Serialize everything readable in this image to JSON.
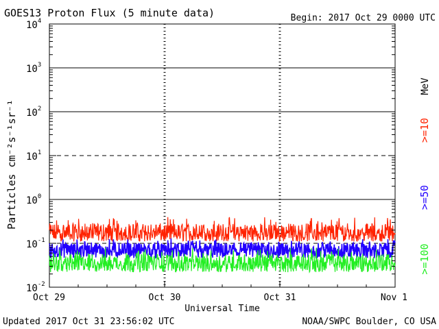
{
  "header": {
    "title": "GOES13 Proton Flux (5 minute data)",
    "begin": "Begin: 2017 Oct 29 0000 UTC"
  },
  "footer": {
    "updated": "Updated 2017 Oct 31 23:56:02 UTC",
    "credit": "NOAA/SWPC Boulder, CO USA"
  },
  "colors": {
    "ge10": "#ff2200",
    "ge50": "#2200ff",
    "ge100": "#22ee22",
    "axis": "#000000"
  },
  "chart_data": {
    "type": "line",
    "title": "GOES13 Proton Flux (5 minute data)",
    "xlabel": "Universal Time",
    "ylabel": "Particles cm⁻²s⁻¹sr⁻¹",
    "yscale": "log",
    "ylim": [
      0.01,
      10000
    ],
    "y_ticks": [
      {
        "base": "10",
        "exp": "-2",
        "value": 0.01
      },
      {
        "base": "10",
        "exp": "-1",
        "value": 0.1
      },
      {
        "base": "10",
        "exp": "0",
        "value": 1
      },
      {
        "base": "10",
        "exp": "1",
        "value": 10
      },
      {
        "base": "10",
        "exp": "2",
        "value": 100
      },
      {
        "base": "10",
        "exp": "3",
        "value": 1000
      },
      {
        "base": "10",
        "exp": "4",
        "value": 10000
      }
    ],
    "x_ticks": [
      "Oct 29",
      "Oct 30",
      "Oct 31",
      "Nov 1"
    ],
    "xlim": [
      "2017-10-29T00:00Z",
      "2017-11-01T00:00Z"
    ],
    "grid": {
      "solid_at": [
        1,
        100,
        1000
      ],
      "dashed_at": [
        10,
        0.1
      ]
    },
    "right_labels": {
      "unit": "MeV",
      "ge10": ">=10",
      "ge50": ">=50",
      "ge100": ">=100"
    },
    "series": [
      {
        "key": "ge10",
        "name": ">=10 MeV",
        "typical": 0.17,
        "range": [
          0.11,
          0.4
        ],
        "color": "#ff2200"
      },
      {
        "key": "ge50",
        "name": ">=50 MeV",
        "typical": 0.07,
        "range": [
          0.045,
          0.13
        ],
        "color": "#2200ff"
      },
      {
        "key": "ge100",
        "name": ">=100 MeV",
        "typical": 0.035,
        "range": [
          0.022,
          0.08
        ],
        "color": "#22ee22"
      }
    ]
  }
}
